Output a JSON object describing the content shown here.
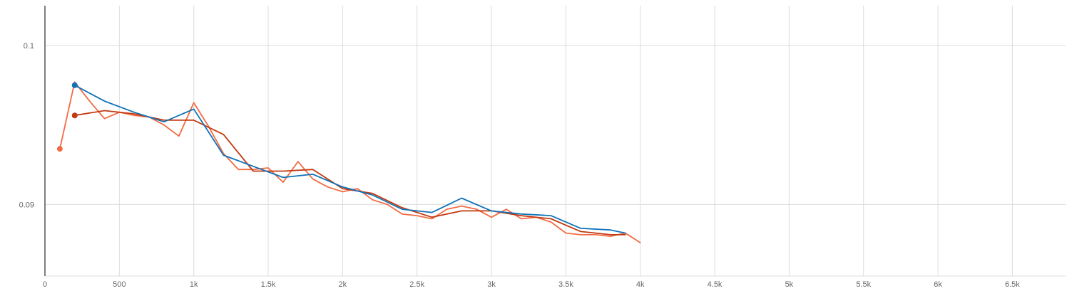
{
  "chart_data": {
    "type": "line",
    "title": "",
    "xlabel": "",
    "ylabel": "",
    "xlim": [
      0,
      6800
    ],
    "ylim": [
      0.0855,
      0.1025
    ],
    "grid": true,
    "x_ticks": [
      0,
      500,
      1000,
      1500,
      2000,
      2500,
      3000,
      3500,
      4000,
      4500,
      5000,
      5500,
      6000,
      6500
    ],
    "x_tick_labels": [
      "0",
      "500",
      "1k",
      "1.5k",
      "2k",
      "2.5k",
      "3k",
      "3.5k",
      "4k",
      "4.5k",
      "5k",
      "5.5k",
      "6k",
      "6.5k"
    ],
    "y_ticks": [
      0.09,
      0.1
    ],
    "y_tick_labels": [
      "0.09",
      "0.1"
    ],
    "series": [
      {
        "color": "#f26b43",
        "points": [
          [
            100,
            0.0935
          ],
          [
            200,
            0.0977
          ],
          [
            300,
            0.0965
          ],
          [
            400,
            0.0954
          ],
          [
            500,
            0.0958
          ],
          [
            600,
            0.0956
          ],
          [
            700,
            0.0955
          ],
          [
            800,
            0.095
          ],
          [
            900,
            0.0943
          ],
          [
            1000,
            0.0964
          ],
          [
            1100,
            0.0949
          ],
          [
            1200,
            0.0932
          ],
          [
            1300,
            0.0922
          ],
          [
            1400,
            0.0922
          ],
          [
            1500,
            0.0923
          ],
          [
            1600,
            0.0914
          ],
          [
            1700,
            0.0927
          ],
          [
            1800,
            0.0916
          ],
          [
            1900,
            0.0911
          ],
          [
            2000,
            0.0908
          ],
          [
            2100,
            0.091
          ],
          [
            2200,
            0.0903
          ],
          [
            2300,
            0.09
          ],
          [
            2400,
            0.0894
          ],
          [
            2500,
            0.0893
          ],
          [
            2600,
            0.0891
          ],
          [
            2700,
            0.0897
          ],
          [
            2800,
            0.0899
          ],
          [
            2900,
            0.0897
          ],
          [
            3000,
            0.0892
          ],
          [
            3100,
            0.0897
          ],
          [
            3200,
            0.0891
          ],
          [
            3300,
            0.0892
          ],
          [
            3400,
            0.0889
          ],
          [
            3500,
            0.0882
          ],
          [
            3600,
            0.0881
          ],
          [
            3700,
            0.0881
          ],
          [
            3800,
            0.088
          ],
          [
            3900,
            0.0882
          ],
          [
            4000,
            0.0876
          ]
        ],
        "start_marker": true
      },
      {
        "color": "#c23a10",
        "points": [
          [
            200,
            0.0956
          ],
          [
            400,
            0.0959
          ],
          [
            600,
            0.0957
          ],
          [
            800,
            0.0953
          ],
          [
            1000,
            0.0953
          ],
          [
            1200,
            0.0944
          ],
          [
            1400,
            0.0921
          ],
          [
            1600,
            0.0921
          ],
          [
            1800,
            0.0922
          ],
          [
            2000,
            0.091
          ],
          [
            2200,
            0.0907
          ],
          [
            2400,
            0.0898
          ],
          [
            2600,
            0.0892
          ],
          [
            2800,
            0.0896
          ],
          [
            3000,
            0.0896
          ],
          [
            3200,
            0.0893
          ],
          [
            3400,
            0.0891
          ],
          [
            3600,
            0.0883
          ],
          [
            3800,
            0.0881
          ],
          [
            3900,
            0.0881
          ]
        ],
        "start_marker": true
      },
      {
        "color": "#0f72b8",
        "points": [
          [
            200,
            0.0975
          ],
          [
            400,
            0.0965
          ],
          [
            600,
            0.0958
          ],
          [
            800,
            0.0952
          ],
          [
            1000,
            0.096
          ],
          [
            1200,
            0.0931
          ],
          [
            1400,
            0.0924
          ],
          [
            1600,
            0.0917
          ],
          [
            1800,
            0.0919
          ],
          [
            2000,
            0.0911
          ],
          [
            2200,
            0.0906
          ],
          [
            2400,
            0.0897
          ],
          [
            2600,
            0.0895
          ],
          [
            2800,
            0.0904
          ],
          [
            3000,
            0.0896
          ],
          [
            3200,
            0.0894
          ],
          [
            3400,
            0.0893
          ],
          [
            3600,
            0.0885
          ],
          [
            3800,
            0.0884
          ],
          [
            3900,
            0.0882
          ]
        ],
        "start_marker": true
      }
    ]
  }
}
